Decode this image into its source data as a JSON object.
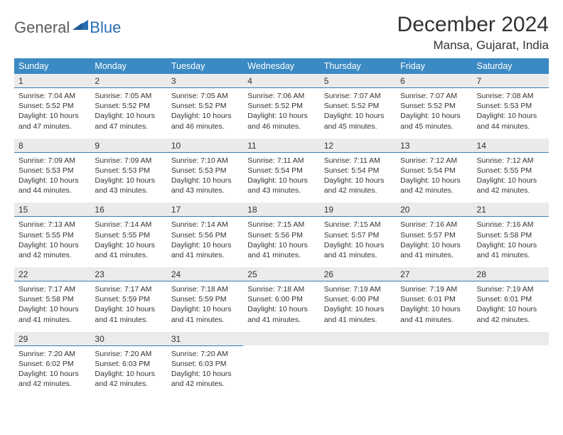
{
  "brand": {
    "general": "General",
    "blue": "Blue"
  },
  "title": "December 2024",
  "location": "Mansa, Gujarat, India",
  "colors": {
    "header_bg": "#3b8ac4",
    "header_text": "#ffffff",
    "daynum_bg": "#ebebeb",
    "daynum_border": "#3b7db0",
    "body_text": "#333333",
    "logo_gray": "#5a5a5a",
    "logo_blue": "#2a6db3"
  },
  "weekdays": [
    "Sunday",
    "Monday",
    "Tuesday",
    "Wednesday",
    "Thursday",
    "Friday",
    "Saturday"
  ],
  "weeks": [
    {
      "nums": [
        "1",
        "2",
        "3",
        "4",
        "5",
        "6",
        "7"
      ],
      "cells": [
        {
          "sunrise": "Sunrise: 7:04 AM",
          "sunset": "Sunset: 5:52 PM",
          "day1": "Daylight: 10 hours",
          "day2": "and 47 minutes."
        },
        {
          "sunrise": "Sunrise: 7:05 AM",
          "sunset": "Sunset: 5:52 PM",
          "day1": "Daylight: 10 hours",
          "day2": "and 47 minutes."
        },
        {
          "sunrise": "Sunrise: 7:05 AM",
          "sunset": "Sunset: 5:52 PM",
          "day1": "Daylight: 10 hours",
          "day2": "and 46 minutes."
        },
        {
          "sunrise": "Sunrise: 7:06 AM",
          "sunset": "Sunset: 5:52 PM",
          "day1": "Daylight: 10 hours",
          "day2": "and 46 minutes."
        },
        {
          "sunrise": "Sunrise: 7:07 AM",
          "sunset": "Sunset: 5:52 PM",
          "day1": "Daylight: 10 hours",
          "day2": "and 45 minutes."
        },
        {
          "sunrise": "Sunrise: 7:07 AM",
          "sunset": "Sunset: 5:52 PM",
          "day1": "Daylight: 10 hours",
          "day2": "and 45 minutes."
        },
        {
          "sunrise": "Sunrise: 7:08 AM",
          "sunset": "Sunset: 5:53 PM",
          "day1": "Daylight: 10 hours",
          "day2": "and 44 minutes."
        }
      ]
    },
    {
      "nums": [
        "8",
        "9",
        "10",
        "11",
        "12",
        "13",
        "14"
      ],
      "cells": [
        {
          "sunrise": "Sunrise: 7:09 AM",
          "sunset": "Sunset: 5:53 PM",
          "day1": "Daylight: 10 hours",
          "day2": "and 44 minutes."
        },
        {
          "sunrise": "Sunrise: 7:09 AM",
          "sunset": "Sunset: 5:53 PM",
          "day1": "Daylight: 10 hours",
          "day2": "and 43 minutes."
        },
        {
          "sunrise": "Sunrise: 7:10 AM",
          "sunset": "Sunset: 5:53 PM",
          "day1": "Daylight: 10 hours",
          "day2": "and 43 minutes."
        },
        {
          "sunrise": "Sunrise: 7:11 AM",
          "sunset": "Sunset: 5:54 PM",
          "day1": "Daylight: 10 hours",
          "day2": "and 43 minutes."
        },
        {
          "sunrise": "Sunrise: 7:11 AM",
          "sunset": "Sunset: 5:54 PM",
          "day1": "Daylight: 10 hours",
          "day2": "and 42 minutes."
        },
        {
          "sunrise": "Sunrise: 7:12 AM",
          "sunset": "Sunset: 5:54 PM",
          "day1": "Daylight: 10 hours",
          "day2": "and 42 minutes."
        },
        {
          "sunrise": "Sunrise: 7:12 AM",
          "sunset": "Sunset: 5:55 PM",
          "day1": "Daylight: 10 hours",
          "day2": "and 42 minutes."
        }
      ]
    },
    {
      "nums": [
        "15",
        "16",
        "17",
        "18",
        "19",
        "20",
        "21"
      ],
      "cells": [
        {
          "sunrise": "Sunrise: 7:13 AM",
          "sunset": "Sunset: 5:55 PM",
          "day1": "Daylight: 10 hours",
          "day2": "and 42 minutes."
        },
        {
          "sunrise": "Sunrise: 7:14 AM",
          "sunset": "Sunset: 5:55 PM",
          "day1": "Daylight: 10 hours",
          "day2": "and 41 minutes."
        },
        {
          "sunrise": "Sunrise: 7:14 AM",
          "sunset": "Sunset: 5:56 PM",
          "day1": "Daylight: 10 hours",
          "day2": "and 41 minutes."
        },
        {
          "sunrise": "Sunrise: 7:15 AM",
          "sunset": "Sunset: 5:56 PM",
          "day1": "Daylight: 10 hours",
          "day2": "and 41 minutes."
        },
        {
          "sunrise": "Sunrise: 7:15 AM",
          "sunset": "Sunset: 5:57 PM",
          "day1": "Daylight: 10 hours",
          "day2": "and 41 minutes."
        },
        {
          "sunrise": "Sunrise: 7:16 AM",
          "sunset": "Sunset: 5:57 PM",
          "day1": "Daylight: 10 hours",
          "day2": "and 41 minutes."
        },
        {
          "sunrise": "Sunrise: 7:16 AM",
          "sunset": "Sunset: 5:58 PM",
          "day1": "Daylight: 10 hours",
          "day2": "and 41 minutes."
        }
      ]
    },
    {
      "nums": [
        "22",
        "23",
        "24",
        "25",
        "26",
        "27",
        "28"
      ],
      "cells": [
        {
          "sunrise": "Sunrise: 7:17 AM",
          "sunset": "Sunset: 5:58 PM",
          "day1": "Daylight: 10 hours",
          "day2": "and 41 minutes."
        },
        {
          "sunrise": "Sunrise: 7:17 AM",
          "sunset": "Sunset: 5:59 PM",
          "day1": "Daylight: 10 hours",
          "day2": "and 41 minutes."
        },
        {
          "sunrise": "Sunrise: 7:18 AM",
          "sunset": "Sunset: 5:59 PM",
          "day1": "Daylight: 10 hours",
          "day2": "and 41 minutes."
        },
        {
          "sunrise": "Sunrise: 7:18 AM",
          "sunset": "Sunset: 6:00 PM",
          "day1": "Daylight: 10 hours",
          "day2": "and 41 minutes."
        },
        {
          "sunrise": "Sunrise: 7:19 AM",
          "sunset": "Sunset: 6:00 PM",
          "day1": "Daylight: 10 hours",
          "day2": "and 41 minutes."
        },
        {
          "sunrise": "Sunrise: 7:19 AM",
          "sunset": "Sunset: 6:01 PM",
          "day1": "Daylight: 10 hours",
          "day2": "and 41 minutes."
        },
        {
          "sunrise": "Sunrise: 7:19 AM",
          "sunset": "Sunset: 6:01 PM",
          "day1": "Daylight: 10 hours",
          "day2": "and 42 minutes."
        }
      ]
    },
    {
      "nums": [
        "29",
        "30",
        "31",
        "",
        "",
        "",
        ""
      ],
      "cells": [
        {
          "sunrise": "Sunrise: 7:20 AM",
          "sunset": "Sunset: 6:02 PM",
          "day1": "Daylight: 10 hours",
          "day2": "and 42 minutes."
        },
        {
          "sunrise": "Sunrise: 7:20 AM",
          "sunset": "Sunset: 6:03 PM",
          "day1": "Daylight: 10 hours",
          "day2": "and 42 minutes."
        },
        {
          "sunrise": "Sunrise: 7:20 AM",
          "sunset": "Sunset: 6:03 PM",
          "day1": "Daylight: 10 hours",
          "day2": "and 42 minutes."
        },
        null,
        null,
        null,
        null
      ]
    }
  ]
}
